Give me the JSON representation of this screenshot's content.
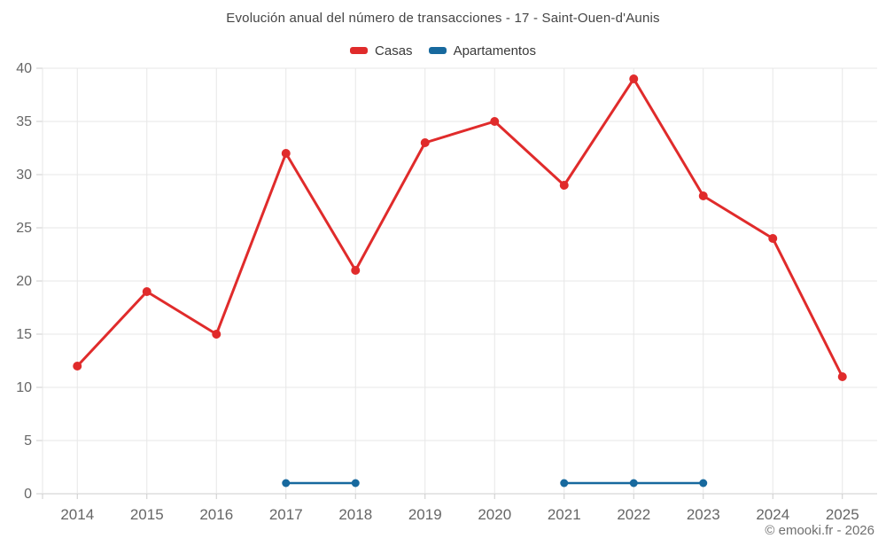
{
  "title": "Evolución anual del número de transacciones - 17 - Saint-Ouen-d'Aunis",
  "legend": {
    "items": [
      {
        "label": "Casas",
        "color": "#e02b2b"
      },
      {
        "label": "Apartamentos",
        "color": "#17699e"
      }
    ]
  },
  "copyright": "© emooki.fr - 2026",
  "chart_data": {
    "type": "line",
    "title": "Evolución anual del número de transacciones - 17 - Saint-Ouen-d'Aunis",
    "categories": [
      "2014",
      "2015",
      "2016",
      "2017",
      "2018",
      "2019",
      "2020",
      "2021",
      "2022",
      "2023",
      "2024",
      "2025"
    ],
    "series": [
      {
        "name": "Casas",
        "color": "#e02b2b",
        "line_width": 3,
        "marker_radius": 5,
        "values": [
          12,
          19,
          15,
          32,
          21,
          33,
          35,
          29,
          39,
          28,
          24,
          11
        ]
      },
      {
        "name": "Apartamentos",
        "color": "#17699e",
        "line_width": 2.5,
        "marker_radius": 4.5,
        "values": [
          null,
          null,
          null,
          1,
          1,
          null,
          null,
          1,
          1,
          1,
          null,
          null
        ]
      }
    ],
    "xlabel": "",
    "ylabel": "",
    "ylim": [
      0,
      40
    ],
    "yticks": [
      0,
      5,
      10,
      15,
      20,
      25,
      30,
      35,
      40
    ],
    "grid": true,
    "legend_position": "top",
    "colors": {
      "grid": "#e7e7e7",
      "axis_line": "#cccccc",
      "tick_label": "#666666"
    }
  }
}
